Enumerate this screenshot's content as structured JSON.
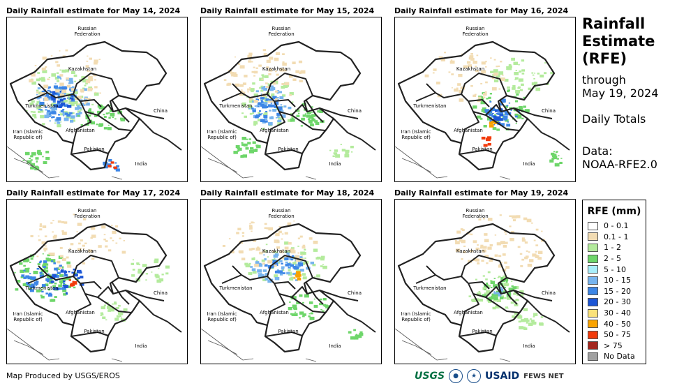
{
  "panels": [
    {
      "title": "Daily Rainfall estimate for May 14, 2024",
      "intensity": "heavy-west"
    },
    {
      "title": "Daily Rainfall estimate for May 15, 2024",
      "intensity": "central"
    },
    {
      "title": "Daily Rainfall estimate for May 16, 2024",
      "intensity": "east"
    },
    {
      "title": "Daily Rainfall estimate for May 17, 2024",
      "intensity": "west"
    },
    {
      "title": "Daily Rainfall estimate for May 18, 2024",
      "intensity": "north"
    },
    {
      "title": "Daily Rainfall estimate for May 19, 2024",
      "intensity": "light"
    }
  ],
  "map_labels": {
    "russia": "Russian\nFederation",
    "kazakhstan": "Kazakhstan",
    "turkmenistan": "Turkmenistan",
    "china": "China",
    "iran": "Iran  (Islamic\nRepublic of)",
    "afghanistan": "Afghanistan",
    "pakistan": "Pakistan",
    "india": "India"
  },
  "side": {
    "title_line1": "Rainfall",
    "title_line2": "Estimate",
    "title_line3": "(RFE)",
    "through": "through",
    "date": "May 19, 2024",
    "totals": "Daily Totals",
    "data_label": "Data:",
    "data_source": "NOAA-RFE2.0"
  },
  "legend": {
    "title": "RFE (mm)",
    "items": [
      {
        "label": "0 - 0.1",
        "color": "#ffffff"
      },
      {
        "label": "0.1 - 1",
        "color": "#f2dcb3"
      },
      {
        "label": "1 - 2",
        "color": "#b4eb9d"
      },
      {
        "label": "2 - 5",
        "color": "#6ed66a"
      },
      {
        "label": "5 - 10",
        "color": "#a9eefa"
      },
      {
        "label": "10 - 15",
        "color": "#77b4ee"
      },
      {
        "label": "15 - 20",
        "color": "#3d86e6"
      },
      {
        "label": "20 - 30",
        "color": "#1c56d6"
      },
      {
        "label": "30 - 40",
        "color": "#fbe27a"
      },
      {
        "label": "40 - 50",
        "color": "#f9a300"
      },
      {
        "label": "50 - 75",
        "color": "#f23b0c"
      },
      {
        "label": "> 75",
        "color": "#a42820"
      },
      {
        "label": "No Data",
        "color": "#a0a0a0"
      }
    ]
  },
  "credit": "Map Produced by USGS/EROS",
  "logos": {
    "usgs": "USGS",
    "noaa": "NOAA",
    "usaid": "USAID",
    "fews": "FEWS NET"
  }
}
